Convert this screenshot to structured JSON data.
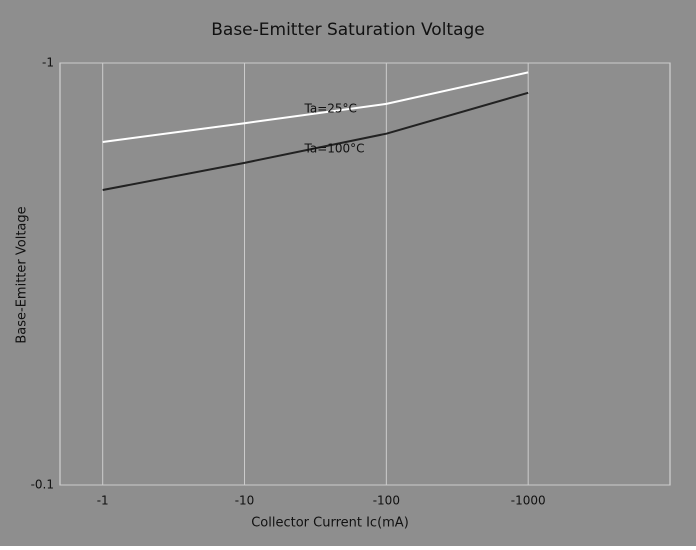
{
  "chart_data": {
    "type": "line",
    "title": "Base-Emitter Saturation Voltage",
    "x_label": "Collector Current   Ic(mA)",
    "y_label": "Base-Emitter Voltage",
    "x": [
      -1,
      -10,
      -100,
      -1000
    ],
    "series": [
      {
        "name": "Ta=25°C",
        "color": "#ffffff",
        "values": [
          -0.65,
          -0.72,
          -0.8,
          -0.95
        ]
      },
      {
        "name": "Ta=100°C",
        "color": "#222222",
        "values": [
          -0.5,
          -0.58,
          -0.68,
          -0.85
        ]
      }
    ],
    "xlim": [
      -0.5,
      -10000
    ],
    "ylim": [
      -0.1,
      -1
    ],
    "xticks": [
      -1,
      -10,
      -100,
      -1000
    ],
    "yticks": [
      -1,
      -0.1
    ],
    "log_x": true,
    "log_y": true,
    "grid": true,
    "background": "#8e8e8e"
  }
}
